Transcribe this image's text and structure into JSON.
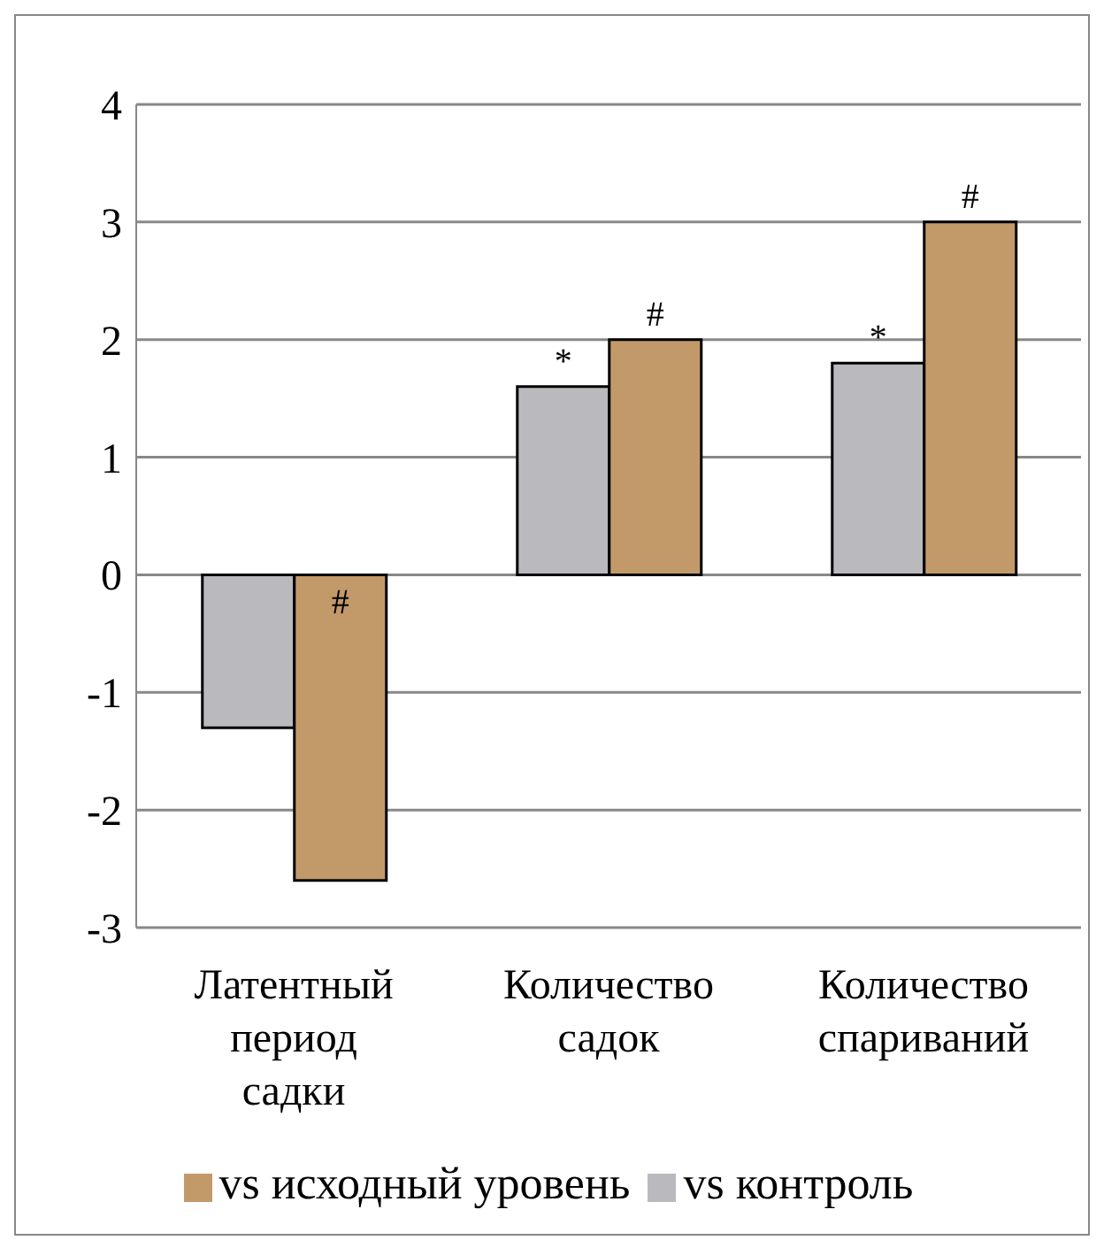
{
  "chart_data": {
    "type": "bar",
    "categories": [
      "Латентный период садки",
      "Количество садок",
      "Количество спариваний"
    ],
    "series": [
      {
        "name": "vs контроль",
        "color": "#b9b9be",
        "values": [
          -1.3,
          1.6,
          1.8
        ],
        "value_labels": [
          null,
          "*",
          "*"
        ]
      },
      {
        "name": "vs исходный уровень",
        "color": "#c29a6a",
        "values": [
          -2.6,
          2.0,
          3.0
        ],
        "value_labels": [
          "#",
          "#",
          "#"
        ]
      }
    ],
    "ylim": [
      -3,
      4
    ],
    "yticks": [
      -3,
      -2,
      -1,
      0,
      1,
      2,
      3,
      4
    ],
    "grid": "y",
    "legend": "bottom"
  }
}
